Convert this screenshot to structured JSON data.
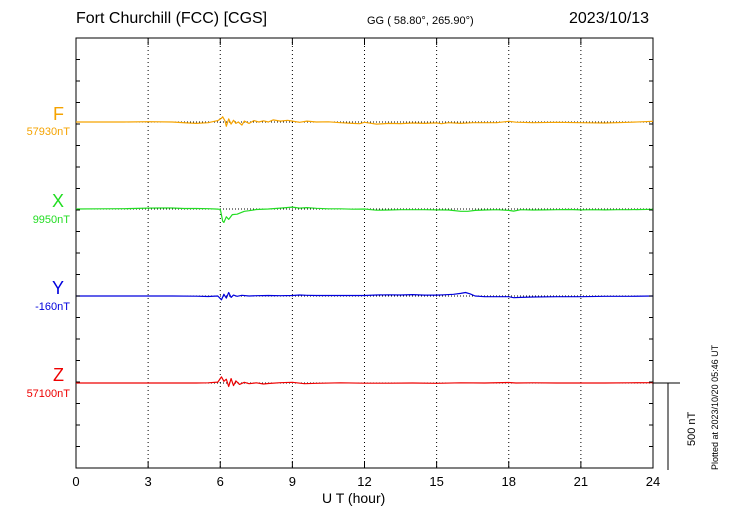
{
  "header": {
    "station": "Fort Churchill (FCC)  [CGS]",
    "coords_prefix": "GG",
    "coords_value": "( 58.80°, 265.90°)",
    "date": "2023/10/13"
  },
  "footer": {
    "plotted": "Plotted at 2023/10/20 05:46 UT",
    "scale_label": "500 nT"
  },
  "chart_data": {
    "type": "line",
    "xlabel": "U T (hour)",
    "xlim": [
      0,
      24
    ],
    "xticks": [
      0,
      3,
      6,
      9,
      12,
      15,
      18,
      21,
      24
    ],
    "grid": true,
    "scale_bar_nT": 500,
    "series": [
      {
        "name": "F",
        "baseline_label": "57930nT",
        "baseline": 57930,
        "color": "#f5a300",
        "x": [
          0,
          1,
          2,
          3,
          4,
          4.6,
          5,
          5.5,
          5.9,
          6.05,
          6.1,
          6.2,
          6.25,
          6.35,
          6.45,
          6.55,
          6.65,
          6.75,
          6.9,
          7.0,
          7.2,
          7.4,
          7.6,
          7.8,
          8.0,
          8.2,
          8.5,
          8.8,
          9.0,
          9.3,
          9.6,
          10,
          10.5,
          11,
          11.5,
          11.8,
          12,
          12.5,
          13,
          13.5,
          14,
          14.5,
          15,
          15.2,
          15.5,
          16,
          16.5,
          17,
          17.5,
          18,
          18.3,
          19,
          20,
          21,
          22,
          23,
          24
        ],
        "y": [
          57930,
          57930,
          57930,
          57932,
          57930,
          57925,
          57922,
          57926,
          57938,
          57952,
          57960,
          57935,
          57905,
          57948,
          57918,
          57940,
          57922,
          57930,
          57912,
          57935,
          57922,
          57938,
          57930,
          57937,
          57930,
          57942,
          57935,
          57940,
          57935,
          57928,
          57935,
          57930,
          57931,
          57926,
          57922,
          57920,
          57928,
          57918,
          57922,
          57921,
          57924,
          57922,
          57925,
          57920,
          57926,
          57922,
          57926,
          57926,
          57926,
          57934,
          57929,
          57926,
          57928,
          57926,
          57924,
          57928,
          57934
        ]
      },
      {
        "name": "X",
        "baseline_label": "9950nT",
        "baseline": 9950,
        "color": "#22dd22",
        "x": [
          0,
          1,
          2,
          3,
          3.5,
          4,
          4.5,
          5,
          5.5,
          5.8,
          6.0,
          6.1,
          6.15,
          6.25,
          6.35,
          6.5,
          6.7,
          7.0,
          7.2,
          7.5,
          8.0,
          8.5,
          9.0,
          9.3,
          9.6,
          10,
          10.5,
          11,
          11.5,
          12,
          12.5,
          13,
          13.5,
          14,
          14.5,
          15,
          15.5,
          16,
          16.3,
          16.6,
          17,
          17.5,
          18,
          18.2,
          18.5,
          19,
          19.5,
          20,
          20.5,
          21,
          21.5,
          22,
          22.5,
          23,
          24
        ],
        "y": [
          9950,
          9951,
          9952,
          9955,
          9956,
          9956,
          9953,
          9953,
          9952,
          9950,
          9948,
          9880,
          9873,
          9905,
          9890,
          9918,
          9920,
          9937,
          9940,
          9947,
          9950,
          9955,
          9961,
          9955,
          9958,
          9954,
          9951,
          9951,
          9949,
          9950,
          9943,
          9944,
          9946,
          9946,
          9946,
          9945,
          9944,
          9937,
          9937,
          9942,
          9944,
          9946,
          9942,
          9938,
          9946,
          9944,
          9945,
          9946,
          9947,
          9945,
          9946,
          9945,
          9946,
          9946,
          9948
        ]
      },
      {
        "name": "Y",
        "baseline_label": "-160nT",
        "baseline": -160,
        "color": "#0000dd",
        "x": [
          0,
          1,
          2,
          3,
          4,
          5,
          5.5,
          5.9,
          6.05,
          6.15,
          6.25,
          6.35,
          6.45,
          6.55,
          6.7,
          6.9,
          7.2,
          7.5,
          8.0,
          8.5,
          9.0,
          9.3,
          9.6,
          10,
          11,
          12,
          12.5,
          13,
          13.5,
          14,
          14.5,
          15,
          15.3,
          15.7,
          16.0,
          16.2,
          16.4,
          16.6,
          17.0,
          17.5,
          18.0,
          18.2,
          18.5,
          19,
          20,
          21,
          22,
          23,
          24
        ],
        "y": [
          -160,
          -160,
          -160,
          -160,
          -160,
          -161,
          -163,
          -160,
          -182,
          -150,
          -172,
          -140,
          -168,
          -155,
          -162,
          -156,
          -160,
          -158,
          -157,
          -158,
          -157,
          -154,
          -156,
          -157,
          -157,
          -157,
          -154,
          -153,
          -154,
          -152,
          -155,
          -155,
          -153,
          -150,
          -145,
          -140,
          -148,
          -160,
          -164,
          -164,
          -164,
          -170,
          -168,
          -166,
          -164,
          -164,
          -162,
          -162,
          -160
        ]
      },
      {
        "name": "Z",
        "baseline_label": "57100nT",
        "baseline": 57100,
        "color": "#ee0000",
        "x": [
          0,
          1,
          2,
          3,
          4,
          5,
          5.5,
          5.9,
          6.05,
          6.15,
          6.25,
          6.35,
          6.45,
          6.55,
          6.65,
          6.8,
          7.0,
          7.2,
          7.5,
          7.8,
          8.0,
          8.5,
          9.0,
          9.5,
          10,
          11,
          12,
          13,
          14,
          15,
          16,
          17,
          18,
          18.3,
          19,
          20,
          21,
          22,
          23,
          24
        ],
        "y": [
          57100,
          57100,
          57100,
          57100,
          57100,
          57100,
          57101,
          57105,
          57135,
          57110,
          57122,
          57080,
          57125,
          57085,
          57112,
          57092,
          57104,
          57096,
          57101,
          57094,
          57097,
          57102,
          57104,
          57096,
          57098,
          57101,
          57099,
          57099,
          57100,
          57098,
          57101,
          57100,
          57103,
          57100,
          57101,
          57100,
          57100,
          57100,
          57101,
          57102
        ]
      }
    ]
  }
}
